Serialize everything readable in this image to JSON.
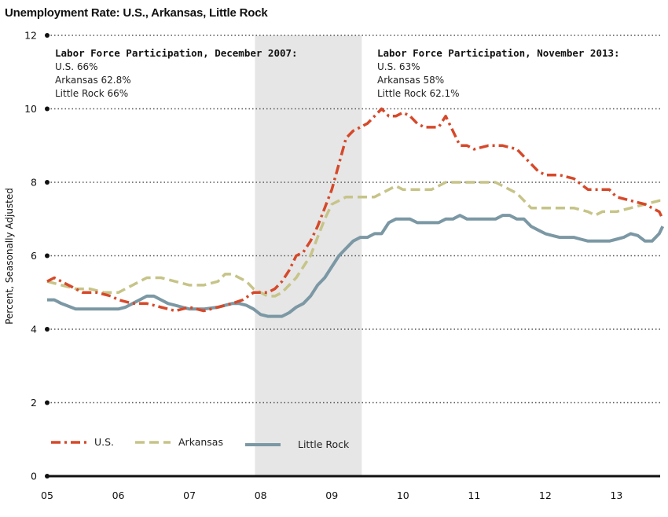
{
  "chart_data": {
    "type": "line",
    "title": "Unemployment Rate: U.S., Arkansas, Little Rock",
    "ylabel": "Percent, Seasonally Adjusted",
    "xlabel": "",
    "ylim": [
      0,
      12
    ],
    "yticks": [
      "0",
      "2",
      "4",
      "6",
      "8",
      "10",
      "12"
    ],
    "x_tick_labels": [
      "05",
      "06",
      "07",
      "08",
      "09",
      "10",
      "11",
      "12",
      "13"
    ],
    "x_range": [
      2005.0,
      2013.65
    ],
    "grid": "horizontal dotted",
    "legend_placement": "bottom-left",
    "recession_shade": [
      2007.92,
      2009.42
    ],
    "annotations": [
      {
        "heading": "Labor Force Participation, December 2007:",
        "lines": [
          "U.S. 66%",
          "Arkansas 62.8%",
          "Little Rock 66%"
        ]
      },
      {
        "heading": "Labor Force Participation, November 2013:",
        "lines": [
          "U.S. 63%",
          "Arkansas 58%",
          "Little Rock 62.1%"
        ]
      }
    ],
    "series": [
      {
        "name": "U.S.",
        "color": "#d6492a",
        "style": "dash-dot",
        "x": [
          2005.0,
          2005.1,
          2005.3,
          2005.5,
          2005.7,
          2005.9,
          2006.0,
          2006.2,
          2006.4,
          2006.6,
          2006.8,
          2007.0,
          2007.2,
          2007.4,
          2007.6,
          2007.75,
          2007.9,
          2008.0,
          2008.1,
          2008.2,
          2008.3,
          2008.4,
          2008.5,
          2008.6,
          2008.7,
          2008.8,
          2008.9,
          2009.0,
          2009.1,
          2009.2,
          2009.3,
          2009.4,
          2009.5,
          2009.6,
          2009.7,
          2009.8,
          2009.9,
          2010.0,
          2010.1,
          2010.2,
          2010.3,
          2010.4,
          2010.5,
          2010.6,
          2010.7,
          2010.8,
          2010.9,
          2011.0,
          2011.2,
          2011.4,
          2011.6,
          2011.7,
          2011.8,
          2011.9,
          2012.0,
          2012.2,
          2012.4,
          2012.6,
          2012.7,
          2012.8,
          2012.9,
          2013.0,
          2013.2,
          2013.4,
          2013.5,
          2013.6,
          2013.65
        ],
        "values": [
          5.3,
          5.4,
          5.2,
          5.0,
          5.0,
          4.9,
          4.8,
          4.7,
          4.7,
          4.6,
          4.5,
          4.6,
          4.5,
          4.6,
          4.7,
          4.8,
          5.0,
          5.0,
          5.0,
          5.1,
          5.3,
          5.6,
          6.0,
          6.1,
          6.4,
          6.8,
          7.3,
          7.8,
          8.5,
          9.2,
          9.4,
          9.5,
          9.6,
          9.8,
          10.0,
          9.8,
          9.8,
          9.9,
          9.8,
          9.6,
          9.5,
          9.5,
          9.5,
          9.8,
          9.4,
          9.0,
          9.0,
          8.9,
          9.0,
          9.0,
          8.9,
          8.7,
          8.5,
          8.3,
          8.2,
          8.2,
          8.1,
          7.8,
          7.8,
          7.8,
          7.8,
          7.6,
          7.5,
          7.4,
          7.3,
          7.2,
          7.0
        ]
      },
      {
        "name": "Arkansas",
        "color": "#c6c488",
        "style": "dashed",
        "x": [
          2005.0,
          2005.2,
          2005.4,
          2005.6,
          2005.8,
          2006.0,
          2006.2,
          2006.4,
          2006.6,
          2006.8,
          2007.0,
          2007.2,
          2007.4,
          2007.5,
          2007.6,
          2007.8,
          2007.9,
          2008.0,
          2008.1,
          2008.2,
          2008.3,
          2008.4,
          2008.5,
          2008.6,
          2008.7,
          2008.8,
          2008.9,
          2009.0,
          2009.1,
          2009.2,
          2009.3,
          2009.4,
          2009.6,
          2009.8,
          2009.9,
          2010.0,
          2010.2,
          2010.4,
          2010.5,
          2010.6,
          2010.8,
          2011.0,
          2011.2,
          2011.3,
          2011.5,
          2011.6,
          2011.8,
          2012.0,
          2012.2,
          2012.4,
          2012.6,
          2012.7,
          2012.8,
          2013.0,
          2013.2,
          2013.4,
          2013.6,
          2013.65
        ],
        "values": [
          5.3,
          5.2,
          5.1,
          5.1,
          5.0,
          5.0,
          5.2,
          5.4,
          5.4,
          5.3,
          5.2,
          5.2,
          5.3,
          5.5,
          5.5,
          5.3,
          5.1,
          5.0,
          4.9,
          4.9,
          5.0,
          5.2,
          5.4,
          5.7,
          6.0,
          6.5,
          7.0,
          7.4,
          7.5,
          7.6,
          7.6,
          7.6,
          7.6,
          7.8,
          7.9,
          7.8,
          7.8,
          7.8,
          7.9,
          8.0,
          8.0,
          8.0,
          8.0,
          8.0,
          7.8,
          7.7,
          7.3,
          7.3,
          7.3,
          7.3,
          7.2,
          7.1,
          7.2,
          7.2,
          7.3,
          7.4,
          7.5,
          7.5
        ]
      },
      {
        "name": "Little Rock",
        "color": "#7b98a4",
        "style": "solid",
        "x": [
          2005.0,
          2005.1,
          2005.2,
          2005.4,
          2005.6,
          2005.8,
          2006.0,
          2006.1,
          2006.2,
          2006.3,
          2006.4,
          2006.5,
          2006.6,
          2006.7,
          2006.8,
          2006.9,
          2007.0,
          2007.2,
          2007.4,
          2007.5,
          2007.6,
          2007.7,
          2007.8,
          2007.9,
          2008.0,
          2008.1,
          2008.2,
          2008.3,
          2008.4,
          2008.5,
          2008.6,
          2008.7,
          2008.8,
          2008.9,
          2009.0,
          2009.1,
          2009.2,
          2009.3,
          2009.4,
          2009.5,
          2009.6,
          2009.7,
          2009.8,
          2009.9,
          2010.0,
          2010.1,
          2010.2,
          2010.3,
          2010.4,
          2010.5,
          2010.6,
          2010.7,
          2010.8,
          2010.9,
          2011.0,
          2011.1,
          2011.2,
          2011.3,
          2011.4,
          2011.5,
          2011.6,
          2011.7,
          2011.8,
          2011.9,
          2012.0,
          2012.1,
          2012.2,
          2012.3,
          2012.4,
          2012.5,
          2012.6,
          2012.7,
          2012.8,
          2012.9,
          2013.0,
          2013.1,
          2013.2,
          2013.3,
          2013.4,
          2013.5,
          2013.6,
          2013.65
        ],
        "values": [
          4.8,
          4.8,
          4.7,
          4.55,
          4.55,
          4.55,
          4.55,
          4.6,
          4.7,
          4.8,
          4.9,
          4.9,
          4.8,
          4.7,
          4.65,
          4.6,
          4.55,
          4.55,
          4.6,
          4.65,
          4.7,
          4.7,
          4.65,
          4.55,
          4.4,
          4.35,
          4.35,
          4.35,
          4.45,
          4.6,
          4.7,
          4.9,
          5.2,
          5.4,
          5.7,
          6.0,
          6.2,
          6.4,
          6.5,
          6.5,
          6.6,
          6.6,
          6.9,
          7.0,
          7.0,
          7.0,
          6.9,
          6.9,
          6.9,
          6.9,
          7.0,
          7.0,
          7.1,
          7.0,
          7.0,
          7.0,
          7.0,
          7.0,
          7.1,
          7.1,
          7.0,
          7.0,
          6.8,
          6.7,
          6.6,
          6.55,
          6.5,
          6.5,
          6.5,
          6.45,
          6.4,
          6.4,
          6.4,
          6.4,
          6.45,
          6.5,
          6.6,
          6.55,
          6.4,
          6.4,
          6.6,
          6.8
        ]
      }
    ]
  }
}
